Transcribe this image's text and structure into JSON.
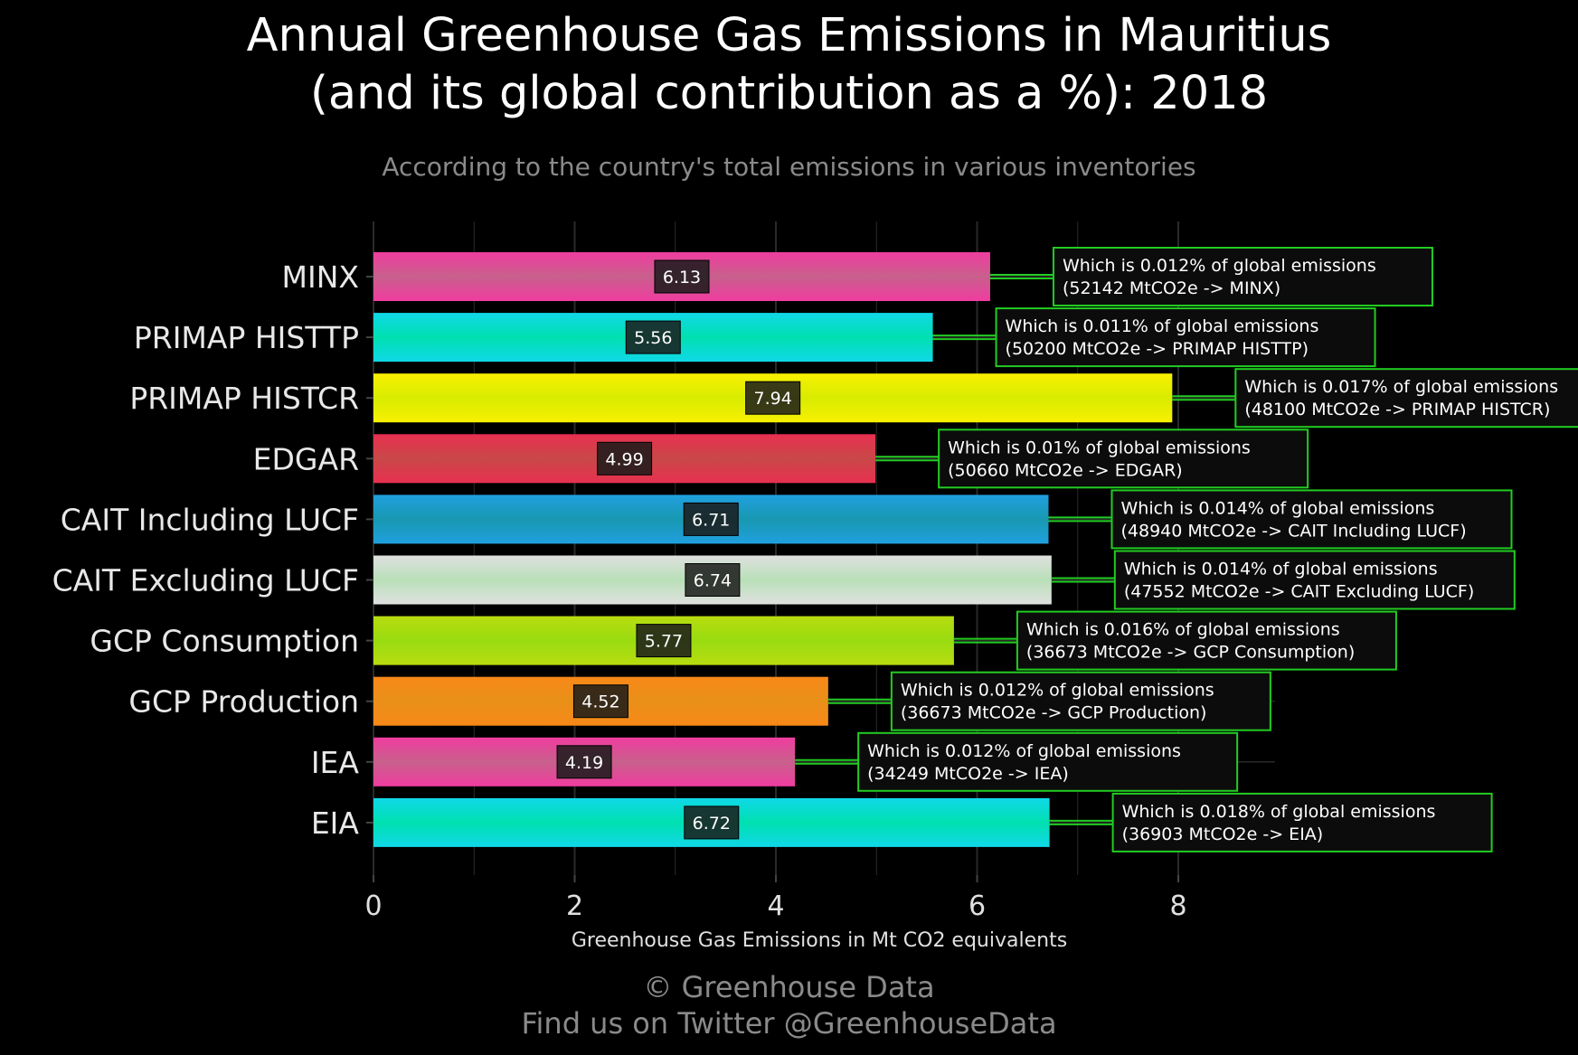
{
  "chart_data": {
    "type": "bar",
    "orientation": "horizontal",
    "title_lines": [
      "Annual Greenhouse Gas Emissions in Mauritius",
      "(and its global contribution as a %): 2018"
    ],
    "subtitle": "According to the country's total emissions in various inventories",
    "xlabel": "Greenhouse Gas Emissions in Mt CO2 equivalents",
    "ylabel": "",
    "xlim": [
      0,
      8.96
    ],
    "xticks": [
      0,
      2,
      4,
      6,
      8
    ],
    "grid": true,
    "legend": "none",
    "categories": [
      "MINX",
      "PRIMAP HISTTP",
      "PRIMAP HISTCR",
      "EDGAR",
      "CAIT Including LUCF",
      "CAIT Excluding LUCF",
      "GCP Consumption",
      "GCP Production",
      "IEA",
      "EIA"
    ],
    "values": [
      6.13,
      5.56,
      7.94,
      4.99,
      6.71,
      6.74,
      5.77,
      4.52,
      4.19,
      6.72
    ],
    "value_labels": [
      "6.13",
      "5.56",
      "7.94",
      "4.99",
      "6.71",
      "6.74",
      "5.77",
      "4.52",
      "4.19",
      "6.72"
    ],
    "annotations": [
      {
        "line1": "Which is 0.012% of global emissions",
        "line2": "(52142 MtCO2e -> MINX)"
      },
      {
        "line1": "Which is 0.011% of global emissions",
        "line2": "(50200 MtCO2e -> PRIMAP HISTTP)"
      },
      {
        "line1": "Which is 0.017% of global emissions",
        "line2": "(48100 MtCO2e -> PRIMAP HISTCR)"
      },
      {
        "line1": "Which is 0.01% of global emissions",
        "line2": "(50660 MtCO2e -> EDGAR)"
      },
      {
        "line1": "Which is 0.014% of global emissions",
        "line2": "(48940 MtCO2e -> CAIT Including LUCF)"
      },
      {
        "line1": "Which is 0.014% of global emissions",
        "line2": "(47552 MtCO2e -> CAIT Excluding LUCF)"
      },
      {
        "line1": "Which is 0.016% of global emissions",
        "line2": "(36673 MtCO2e -> GCP Consumption)"
      },
      {
        "line1": "Which is 0.012% of global emissions",
        "line2": "(36673 MtCO2e -> GCP Production)"
      },
      {
        "line1": "Which is 0.012% of global emissions",
        "line2": "(34249 MtCO2e -> IEA)"
      },
      {
        "line1": "Which is 0.018% of global emissions",
        "line2": "(36903 MtCO2e -> EIA)"
      }
    ],
    "bar_colors": [
      [
        "#f03ca0",
        "#c8608c"
      ],
      [
        "#10d8e8",
        "#00e0b0"
      ],
      [
        "#f8f000",
        "#d8ec00"
      ],
      [
        "#e83050",
        "#c84848"
      ],
      [
        "#20a0e0",
        "#1898b0"
      ],
      [
        "#e0e0e0",
        "#b8e0b8"
      ],
      [
        "#b8dc10",
        "#98dc10"
      ],
      [
        "#f88818",
        "#e89018"
      ],
      [
        "#f03ca0",
        "#c8608c"
      ],
      [
        "#10d8e8",
        "#00e0b0"
      ]
    ]
  },
  "colors": {
    "background": "#000000",
    "annotation_border": "#22cc22",
    "connector": "#22cc22",
    "grid": "#2a2a2a",
    "label_box": "#1a1a1a"
  },
  "footer": {
    "line1": "© Greenhouse Data",
    "line2": "Find us on Twitter @GreenhouseData"
  }
}
